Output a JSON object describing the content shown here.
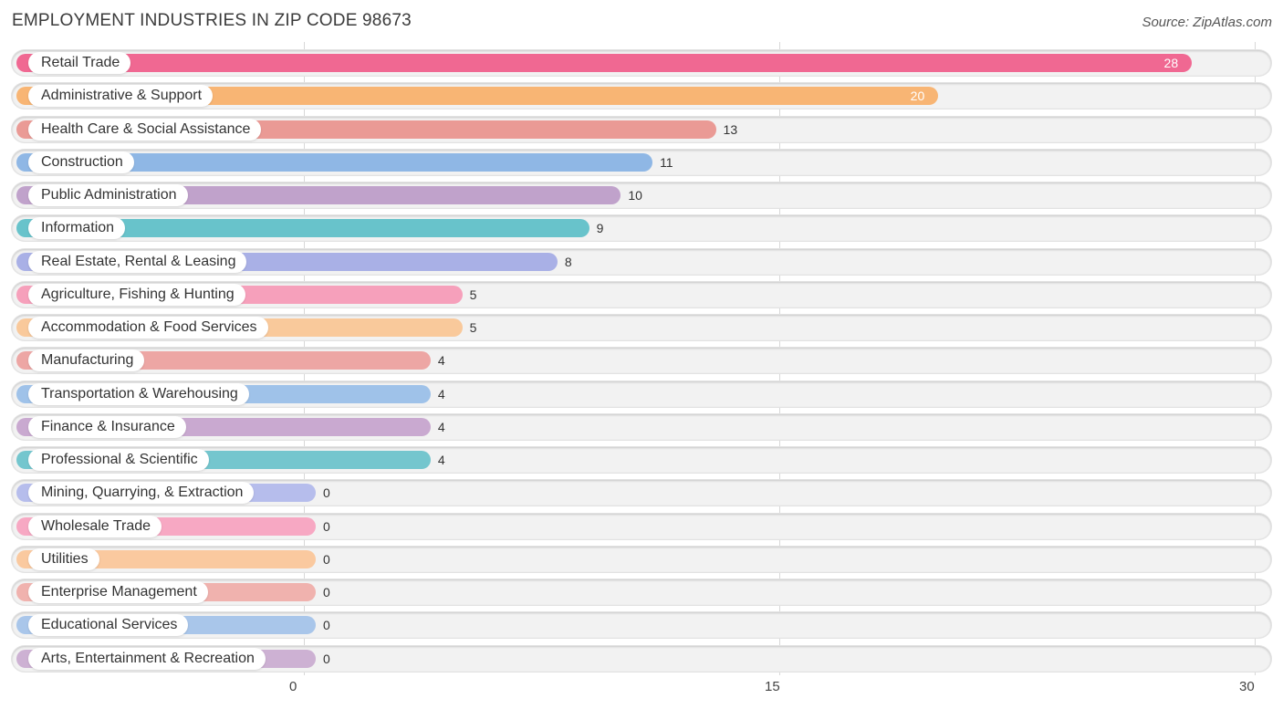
{
  "header": {
    "title": "EMPLOYMENT INDUSTRIES IN ZIP CODE 98673",
    "source": "Source: ZipAtlas.com"
  },
  "chart_data": {
    "type": "bar",
    "orientation": "horizontal",
    "title": "EMPLOYMENT INDUSTRIES IN ZIP CODE 98673",
    "xlim": [
      0,
      30
    ],
    "ticks": [
      0,
      15,
      30
    ],
    "grid": true,
    "categories": [
      "Retail Trade",
      "Administrative & Support",
      "Health Care & Social Assistance",
      "Construction",
      "Public Administration",
      "Information",
      "Real Estate, Rental & Leasing",
      "Agriculture, Fishing & Hunting",
      "Accommodation & Food Services",
      "Manufacturing",
      "Transportation & Warehousing",
      "Finance & Insurance",
      "Professional & Scientific",
      "Mining, Quarrying, & Extraction",
      "Wholesale Trade",
      "Utilities",
      "Enterprise Management",
      "Educational Services",
      "Arts, Entertainment & Recreation"
    ],
    "values": [
      28,
      20,
      13,
      11,
      10,
      9,
      8,
      5,
      5,
      4,
      4,
      4,
      4,
      0,
      0,
      0,
      0,
      0,
      0
    ],
    "colors": [
      "#f06892",
      "#f8b574",
      "#ea9a95",
      "#8fb7e5",
      "#c0a2cb",
      "#68c3cb",
      "#a9b0e6",
      "#f6a0bb",
      "#f9c99b",
      "#eda6a4",
      "#9fc2e9",
      "#c9a9d0",
      "#74c6ce",
      "#b6bdec",
      "#f7a8c3",
      "#fac99f",
      "#f0b2ae",
      "#a9c6ea",
      "#cdb1d3"
    ]
  }
}
